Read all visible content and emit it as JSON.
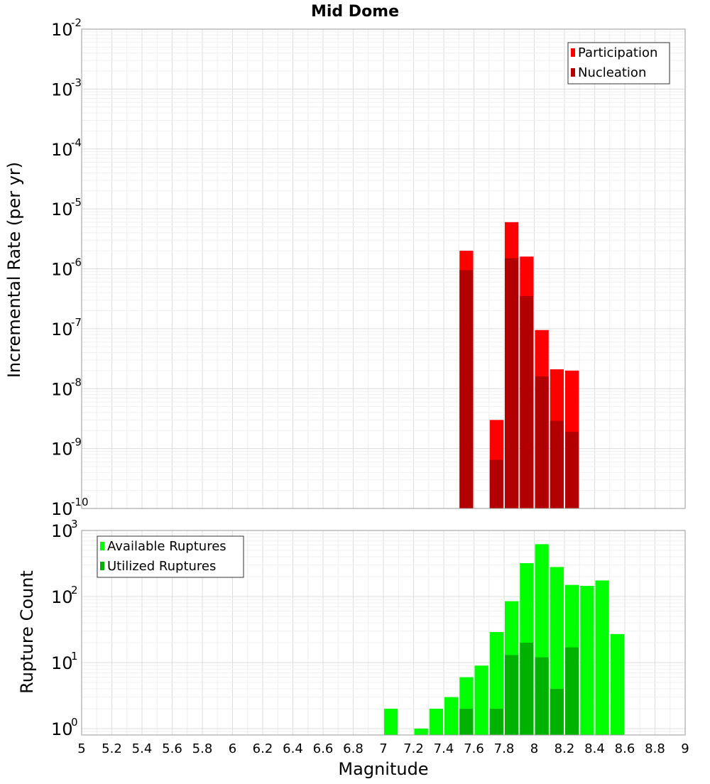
{
  "chart_data": [
    {
      "type": "bar",
      "title": "Mid Dome",
      "ylabel": "Incremental Rate (per yr)",
      "xlabel": "",
      "yscale": "log",
      "xlim": [
        5,
        9
      ],
      "ylim": [
        1e-10,
        0.01
      ],
      "ytick_exponents": [
        -10,
        -9,
        -8,
        -7,
        -6,
        -5,
        -4,
        -3,
        -2
      ],
      "grid": true,
      "legend_position": "top-right",
      "bar_width": 0.1,
      "series": [
        {
          "name": "Participation",
          "color": "#ff0000",
          "points": [
            {
              "x": 7.55,
              "y": 2e-06
            },
            {
              "x": 7.75,
              "y": 3e-09
            },
            {
              "x": 7.85,
              "y": 6e-06
            },
            {
              "x": 7.95,
              "y": 1.6e-06
            },
            {
              "x": 8.05,
              "y": 9.5e-08
            },
            {
              "x": 8.15,
              "y": 2.1e-08
            },
            {
              "x": 8.25,
              "y": 2e-08
            }
          ]
        },
        {
          "name": "Nucleation",
          "color": "#b20000",
          "points": [
            {
              "x": 7.55,
              "y": 9.5e-07
            },
            {
              "x": 7.75,
              "y": 6.5e-10
            },
            {
              "x": 7.85,
              "y": 1.5e-06
            },
            {
              "x": 7.95,
              "y": 3.5e-07
            },
            {
              "x": 8.05,
              "y": 1.6e-08
            },
            {
              "x": 8.15,
              "y": 2.9e-09
            },
            {
              "x": 8.25,
              "y": 1.9e-09
            }
          ]
        }
      ]
    },
    {
      "type": "bar",
      "title": "",
      "ylabel": "Rupture Count",
      "xlabel": "Magnitude",
      "yscale": "log",
      "xlim": [
        5,
        9
      ],
      "ylim": [
        0.8,
        1000
      ],
      "ytick_exponents": [
        0,
        1,
        2,
        3
      ],
      "xticks": [
        "5",
        "5.2",
        "5.4",
        "5.6",
        "5.8",
        "6",
        "6.2",
        "6.4",
        "6.6",
        "6.8",
        "7",
        "7.2",
        "7.4",
        "7.6",
        "7.8",
        "8",
        "8.2",
        "8.4",
        "8.6",
        "8.8",
        "9"
      ],
      "grid": true,
      "legend_position": "top-left",
      "bar_width": 0.1,
      "series": [
        {
          "name": "Available Ruptures",
          "color": "#00ff00",
          "points": [
            {
              "x": 7.05,
              "y": 2
            },
            {
              "x": 7.25,
              "y": 1
            },
            {
              "x": 7.35,
              "y": 2
            },
            {
              "x": 7.45,
              "y": 3
            },
            {
              "x": 7.55,
              "y": 6
            },
            {
              "x": 7.65,
              "y": 9
            },
            {
              "x": 7.75,
              "y": 29
            },
            {
              "x": 7.85,
              "y": 85
            },
            {
              "x": 7.95,
              "y": 320
            },
            {
              "x": 8.05,
              "y": 620
            },
            {
              "x": 8.15,
              "y": 280
            },
            {
              "x": 8.25,
              "y": 150
            },
            {
              "x": 8.35,
              "y": 145
            },
            {
              "x": 8.45,
              "y": 175
            },
            {
              "x": 8.55,
              "y": 27
            }
          ]
        },
        {
          "name": "Utilized Ruptures",
          "color": "#00b200",
          "points": [
            {
              "x": 7.55,
              "y": 2
            },
            {
              "x": 7.75,
              "y": 2
            },
            {
              "x": 7.85,
              "y": 13
            },
            {
              "x": 7.95,
              "y": 20
            },
            {
              "x": 8.05,
              "y": 12
            },
            {
              "x": 8.15,
              "y": 4
            },
            {
              "x": 8.25,
              "y": 17
            }
          ]
        }
      ]
    }
  ]
}
